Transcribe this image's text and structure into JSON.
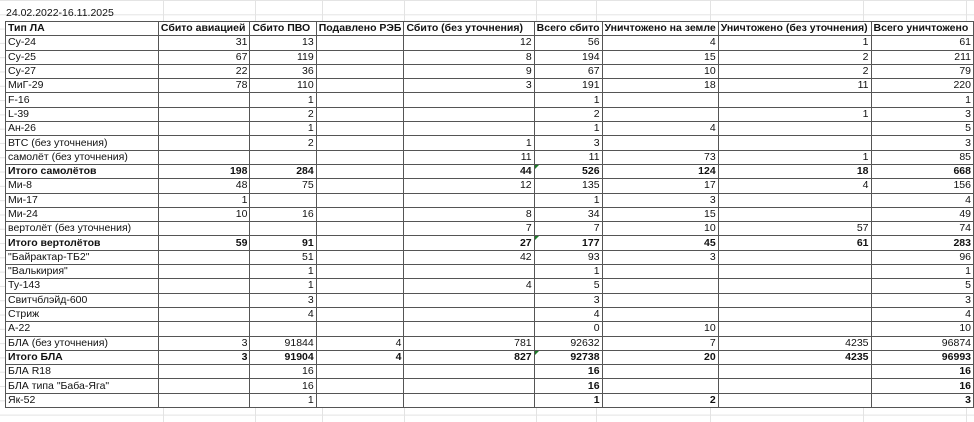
{
  "date_range": "24.02.2022-16.11.2025",
  "headers": [
    "Тип ЛА",
    "Сбито авиацией",
    "Сбито ПВО",
    "Подавлено РЭБ",
    "Сбито (без уточнения)",
    "Всего сбито",
    "Уничтожено на земле",
    "Уничтожено (без уточнения)",
    "Всего уничтожено"
  ],
  "rows": [
    {
      "cells": [
        "Су-24",
        "31",
        "13",
        "",
        "12",
        "56",
        "4",
        "1",
        "61"
      ]
    },
    {
      "cells": [
        "Су-25",
        "67",
        "119",
        "",
        "8",
        "194",
        "15",
        "2",
        "211"
      ]
    },
    {
      "cells": [
        "Су-27",
        "22",
        "36",
        "",
        "9",
        "67",
        "10",
        "2",
        "79"
      ]
    },
    {
      "cells": [
        "МиГ-29",
        "78",
        "110",
        "",
        "3",
        "191",
        "18",
        "11",
        "220"
      ]
    },
    {
      "cells": [
        "F-16",
        "",
        "1",
        "",
        "",
        "1",
        "",
        "",
        "1"
      ]
    },
    {
      "cells": [
        "L-39",
        "",
        "2",
        "",
        "",
        "2",
        "",
        "1",
        "3"
      ]
    },
    {
      "cells": [
        "Ан-26",
        "",
        "1",
        "",
        "",
        "1",
        "4",
        "",
        "5"
      ]
    },
    {
      "cells": [
        "ВТС (без уточнения)",
        "",
        "2",
        "",
        "1",
        "3",
        "",
        "",
        "3"
      ]
    },
    {
      "cells": [
        "самолёт (без уточнения)",
        "",
        "",
        "",
        "11",
        "11",
        "73",
        "1",
        "85"
      ]
    },
    {
      "cells": [
        "Итого самолётов",
        "198",
        "284",
        "",
        "44",
        "526",
        "124",
        "18",
        "668"
      ],
      "bold": true,
      "flag": 5
    },
    {
      "cells": [
        "Ми-8",
        "48",
        "75",
        "",
        "12",
        "135",
        "17",
        "4",
        "156"
      ]
    },
    {
      "cells": [
        "Ми-17",
        "1",
        "",
        "",
        "",
        "1",
        "3",
        "",
        "4"
      ]
    },
    {
      "cells": [
        "Ми-24",
        "10",
        "16",
        "",
        "8",
        "34",
        "15",
        "",
        "49"
      ]
    },
    {
      "cells": [
        "вертолёт (без уточнения)",
        "",
        "",
        "",
        "7",
        "7",
        "10",
        "57",
        "74"
      ]
    },
    {
      "cells": [
        "Итого вертолётов",
        "59",
        "91",
        "",
        "27",
        "177",
        "45",
        "61",
        "283"
      ],
      "bold": true,
      "flag": 5
    },
    {
      "cells": [
        "\"Байрактар-ТБ2\"",
        "",
        "51",
        "",
        "42",
        "93",
        "3",
        "",
        "96"
      ]
    },
    {
      "cells": [
        "\"Валькирия\"",
        "",
        "1",
        "",
        "",
        "1",
        "",
        "",
        "1"
      ]
    },
    {
      "cells": [
        "Ту-143",
        "",
        "1",
        "",
        "4",
        "5",
        "",
        "",
        "5"
      ]
    },
    {
      "cells": [
        "Свитчблэйд-600",
        "",
        "3",
        "",
        "",
        "3",
        "",
        "",
        "3"
      ]
    },
    {
      "cells": [
        "Стриж",
        "",
        "4",
        "",
        "",
        "4",
        "",
        "",
        "4"
      ]
    },
    {
      "cells": [
        "А-22",
        "",
        "",
        "",
        "",
        "0",
        "10",
        "",
        "10"
      ]
    },
    {
      "cells": [
        "БЛА (без уточнения)",
        "3",
        "91844",
        "4",
        "781",
        "92632",
        "7",
        "4235",
        "96874"
      ]
    },
    {
      "cells": [
        "Итого БЛА",
        "3",
        "91904",
        "4",
        "827",
        "92738",
        "20",
        "4235",
        "96993"
      ],
      "bold": true,
      "flag": 5
    },
    {
      "cells": [
        "БЛА R18",
        "",
        "16",
        "",
        "",
        "16",
        "",
        "",
        "16"
      ],
      "boldcols": [
        5,
        8
      ]
    },
    {
      "cells": [
        "БЛА типа \"Баба-Яга\"",
        "",
        "16",
        "",
        "",
        "16",
        "",
        "",
        "16"
      ],
      "boldcols": [
        5,
        8
      ]
    },
    {
      "cells": [
        "Як-52",
        "",
        "1",
        "",
        "",
        "1",
        "2",
        "",
        "3"
      ],
      "boldcols": [
        5,
        6,
        8
      ]
    }
  ],
  "colors": {
    "grid": "#e3e3e3",
    "border": "#555555",
    "flag": "#1e7a2a"
  }
}
